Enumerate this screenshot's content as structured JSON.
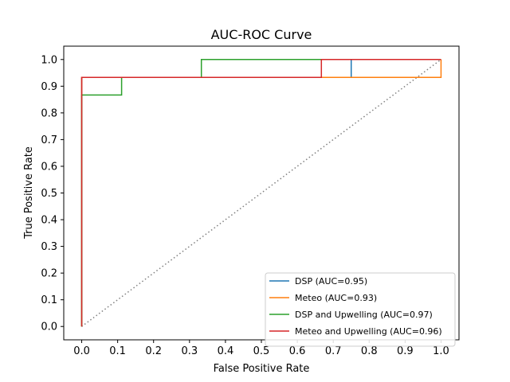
{
  "chart_data": {
    "type": "line",
    "title": "AUC-ROC Curve",
    "xlabel": "False Positive Rate",
    "ylabel": "True Positive Rate",
    "xlim": [
      -0.05,
      1.05
    ],
    "ylim": [
      -0.05,
      1.05
    ],
    "xticks": [
      "0.0",
      "0.1",
      "0.2",
      "0.3",
      "0.4",
      "0.5",
      "0.6",
      "0.7",
      "0.8",
      "0.9",
      "1.0"
    ],
    "yticks": [
      "0.0",
      "0.1",
      "0.2",
      "0.3",
      "0.4",
      "0.5",
      "0.6",
      "0.7",
      "0.8",
      "0.9",
      "1.0"
    ],
    "grid": false,
    "legend_position": "lower-right",
    "reference_line": {
      "x": [
        0,
        1
      ],
      "y": [
        0,
        1
      ],
      "style": "dotted",
      "color": "#808080"
    },
    "series": [
      {
        "name": "DSP (AUC=0.95)",
        "color": "#1f77b4",
        "x": [
          0,
          0,
          0.75,
          0.75,
          1.0
        ],
        "y": [
          0,
          0.933,
          0.933,
          1.0,
          1.0
        ]
      },
      {
        "name": "Meteo (AUC=0.93)",
        "color": "#ff7f0e",
        "x": [
          0,
          0,
          1.0,
          1.0
        ],
        "y": [
          0,
          0.933,
          0.933,
          1.0
        ]
      },
      {
        "name": "DSP and Upwelling (AUC=0.97)",
        "color": "#2ca02c",
        "x": [
          0,
          0,
          0.111,
          0.111,
          0.333,
          0.333,
          1.0
        ],
        "y": [
          0,
          0.867,
          0.867,
          0.933,
          0.933,
          1.0,
          1.0
        ]
      },
      {
        "name": "Meteo and Upwelling (AUC=0.96)",
        "color": "#d62728",
        "x": [
          0,
          0,
          0.667,
          0.667,
          1.0
        ],
        "y": [
          0,
          0.933,
          0.933,
          1.0,
          1.0
        ]
      }
    ]
  }
}
